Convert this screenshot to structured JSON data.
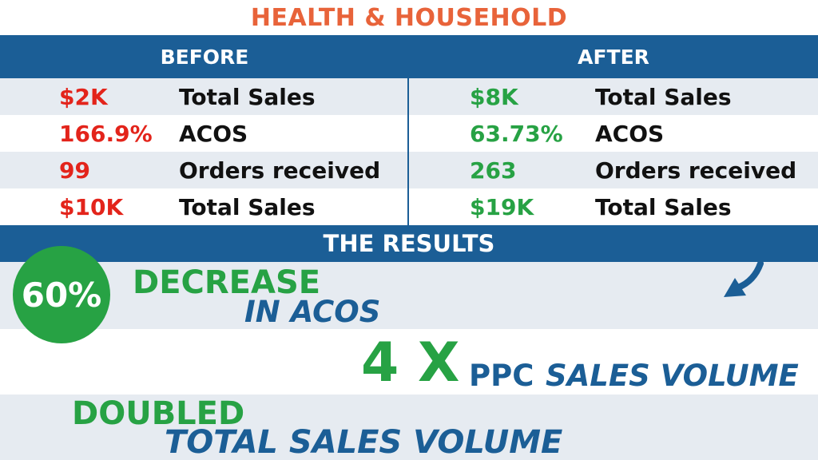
{
  "title": "HEALTH & HOUSEHOLD",
  "columns": {
    "before": "BEFORE",
    "after": "AFTER"
  },
  "rows": [
    {
      "before_value": "$2K",
      "before_label": "Total Sales",
      "after_value": "$8K",
      "after_label": "Total Sales"
    },
    {
      "before_value": "166.9%",
      "before_label": "ACOS",
      "after_value": "63.73%",
      "after_label": "ACOS"
    },
    {
      "before_value": "99",
      "before_label": "Orders received",
      "after_value": "263",
      "after_label": "Orders received"
    },
    {
      "before_value": "$10K",
      "before_label": "Total Sales",
      "after_value": "$19K",
      "after_label": "Total Sales"
    }
  ],
  "results": {
    "heading": "THE RESULTS",
    "circle_value": "60%",
    "decrease": "DECREASE",
    "in_acos": "IN ACOS",
    "multiplier": "4 X",
    "ppc": "PPC",
    "sales_volume": "SALES VOLUME",
    "doubled": "DOUBLED",
    "total_sales_volume": "TOTAL SALES VOLUME"
  },
  "colors": {
    "title_orange": "#e8633a",
    "header_blue": "#1b5e96",
    "before_red": "#e3241b",
    "after_green": "#27a244",
    "row_shade": "#e6ebf1"
  },
  "icons": {
    "results_arrow": "arrow-down-left-icon"
  }
}
